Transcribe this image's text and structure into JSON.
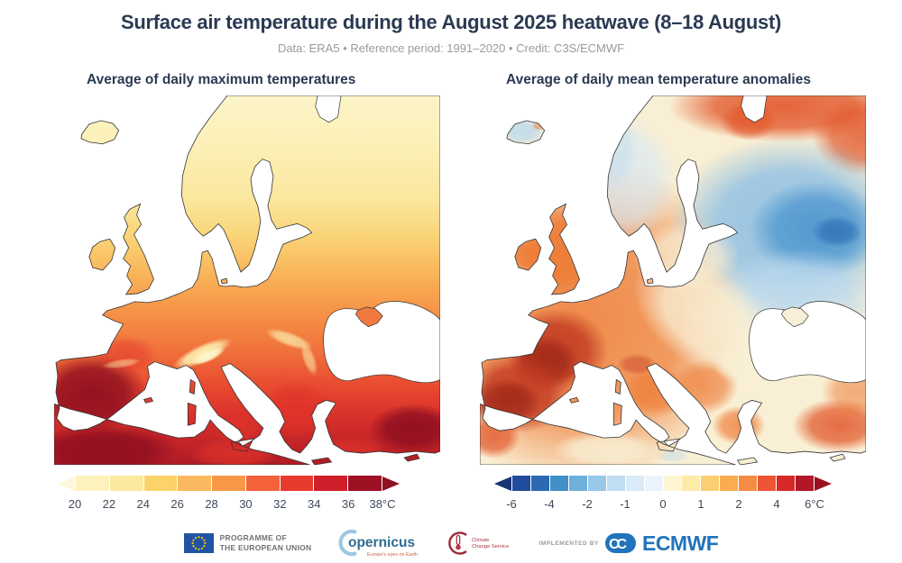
{
  "header": {
    "title": "Surface air temperature during the August 2025 heatwave (8–18 August)",
    "subtitle": "Data: ERA5 • Reference period: 1991–2020 • Credit: C3S/ECMWF"
  },
  "panels": {
    "max": {
      "title": "Average of daily maximum temperatures",
      "colorbar": {
        "unit": "°C",
        "tick_labels": [
          "20",
          "22",
          "24",
          "26",
          "28",
          "30",
          "32",
          "34",
          "36",
          "38°C"
        ],
        "tick_positions": [
          0,
          1,
          2,
          3,
          4,
          5,
          6,
          7,
          8,
          9
        ],
        "segment_colors": [
          "#FCF2BE",
          "#FBE99F",
          "#FBD368",
          "#FAB95E",
          "#F89846",
          "#F4613A",
          "#E93A2E",
          "#D01E2B",
          "#9E1124"
        ],
        "arrow_left_color": "#FDF8DA",
        "arrow_right_color": "#8E1022"
      }
    },
    "anom": {
      "title": "Average of daily mean temperature anomalies",
      "colorbar": {
        "unit": "°C",
        "tick_labels": [
          "-6",
          "-4",
          "-2",
          "-1",
          "0",
          "1",
          "2",
          "4",
          "6°C"
        ],
        "tick_positions": [
          0,
          2,
          4,
          6,
          8,
          10,
          12,
          14,
          16
        ],
        "segment_colors": [
          "#1F4C9C",
          "#2B6AB3",
          "#4190C5",
          "#6FB0DB",
          "#97C8E8",
          "#C0DDF1",
          "#DAEBF7",
          "#ECF4FB",
          "#FEF6D2",
          "#FDEBA8",
          "#FBCF72",
          "#FAAC51",
          "#F68B43",
          "#EE5535",
          "#D7282A",
          "#B11726"
        ],
        "arrow_left_color": "#17366F",
        "arrow_right_color": "#9A1022"
      }
    }
  },
  "footer": {
    "eu_programme": {
      "line1": "PROGRAMME OF",
      "line2": "THE EUROPEAN UNION"
    },
    "copernicus": {
      "wordmark": "opernicus",
      "tagline": "Europe's eyes on Earth"
    },
    "c3s": {
      "line1": "Climate",
      "line2": "Change Service"
    },
    "ecmwf": {
      "implemented_by": "IMPLEMENTED BY",
      "emblem": "CC",
      "name": "ECMWF"
    }
  },
  "chart_data": [
    {
      "type": "map",
      "subtype": "filled-contour-heatmap",
      "title": "Average of daily maximum temperatures",
      "region": "Europe and surrounding area, land only (sea shown white)",
      "units": "°C",
      "scale": {
        "ticks": [
          20,
          22,
          24,
          26,
          28,
          30,
          32,
          34,
          36,
          38
        ],
        "open_ended_low": true,
        "open_ended_high": true
      },
      "readings": [
        {
          "area": "Iberian Peninsula",
          "value": "36 to >38"
        },
        {
          "area": "Southwest France",
          "value": "32 to 36"
        },
        {
          "area": "Central Europe",
          "value": "28 to 32"
        },
        {
          "area": "British Isles",
          "value": "22 to 26"
        },
        {
          "area": "Scandinavia",
          "value": "20 to 24"
        },
        {
          "area": "Iceland",
          "value": "20 to 22"
        },
        {
          "area": "Alps (high elevations)",
          "value": "22 to 26"
        },
        {
          "area": "Italy and Balkans",
          "value": "32 to 36"
        },
        {
          "area": "Turkey / Anatolia",
          "value": "34 to >38"
        },
        {
          "area": "North Africa coast",
          "value": "36 to >38"
        },
        {
          "area": "Northeast Europe / NW Russia",
          "value": "20 to 26"
        }
      ]
    },
    {
      "type": "map",
      "subtype": "filled-contour-heatmap",
      "title": "Average of daily mean temperature anomalies",
      "region": "Europe and surrounding area, land only (sea shown white)",
      "units": "°C relative to 1991–2020",
      "scale": {
        "ticks": [
          -6,
          -4,
          -2,
          -1,
          0,
          1,
          2,
          4,
          6
        ],
        "open_ended_low": true,
        "open_ended_high": true
      },
      "readings": [
        {
          "area": "France",
          "value": "+4 to +6"
        },
        {
          "area": "Iberian Peninsula",
          "value": "+4 to +6"
        },
        {
          "area": "British Isles",
          "value": "+2 to +3"
        },
        {
          "area": "Central Europe",
          "value": "+2 to +4"
        },
        {
          "area": "Scandinavia",
          "value": "-1 to +1"
        },
        {
          "area": "Northeast Europe / NW Russia",
          "value": "-2 to -4"
        },
        {
          "area": "Far north Barents coast",
          "value": "+2 to +4"
        },
        {
          "area": "Iceland",
          "value": "-1 to 0"
        },
        {
          "area": "Italy and Balkans",
          "value": "+1 to +3"
        },
        {
          "area": "Turkey",
          "value": "+2 to +4"
        }
      ]
    }
  ]
}
